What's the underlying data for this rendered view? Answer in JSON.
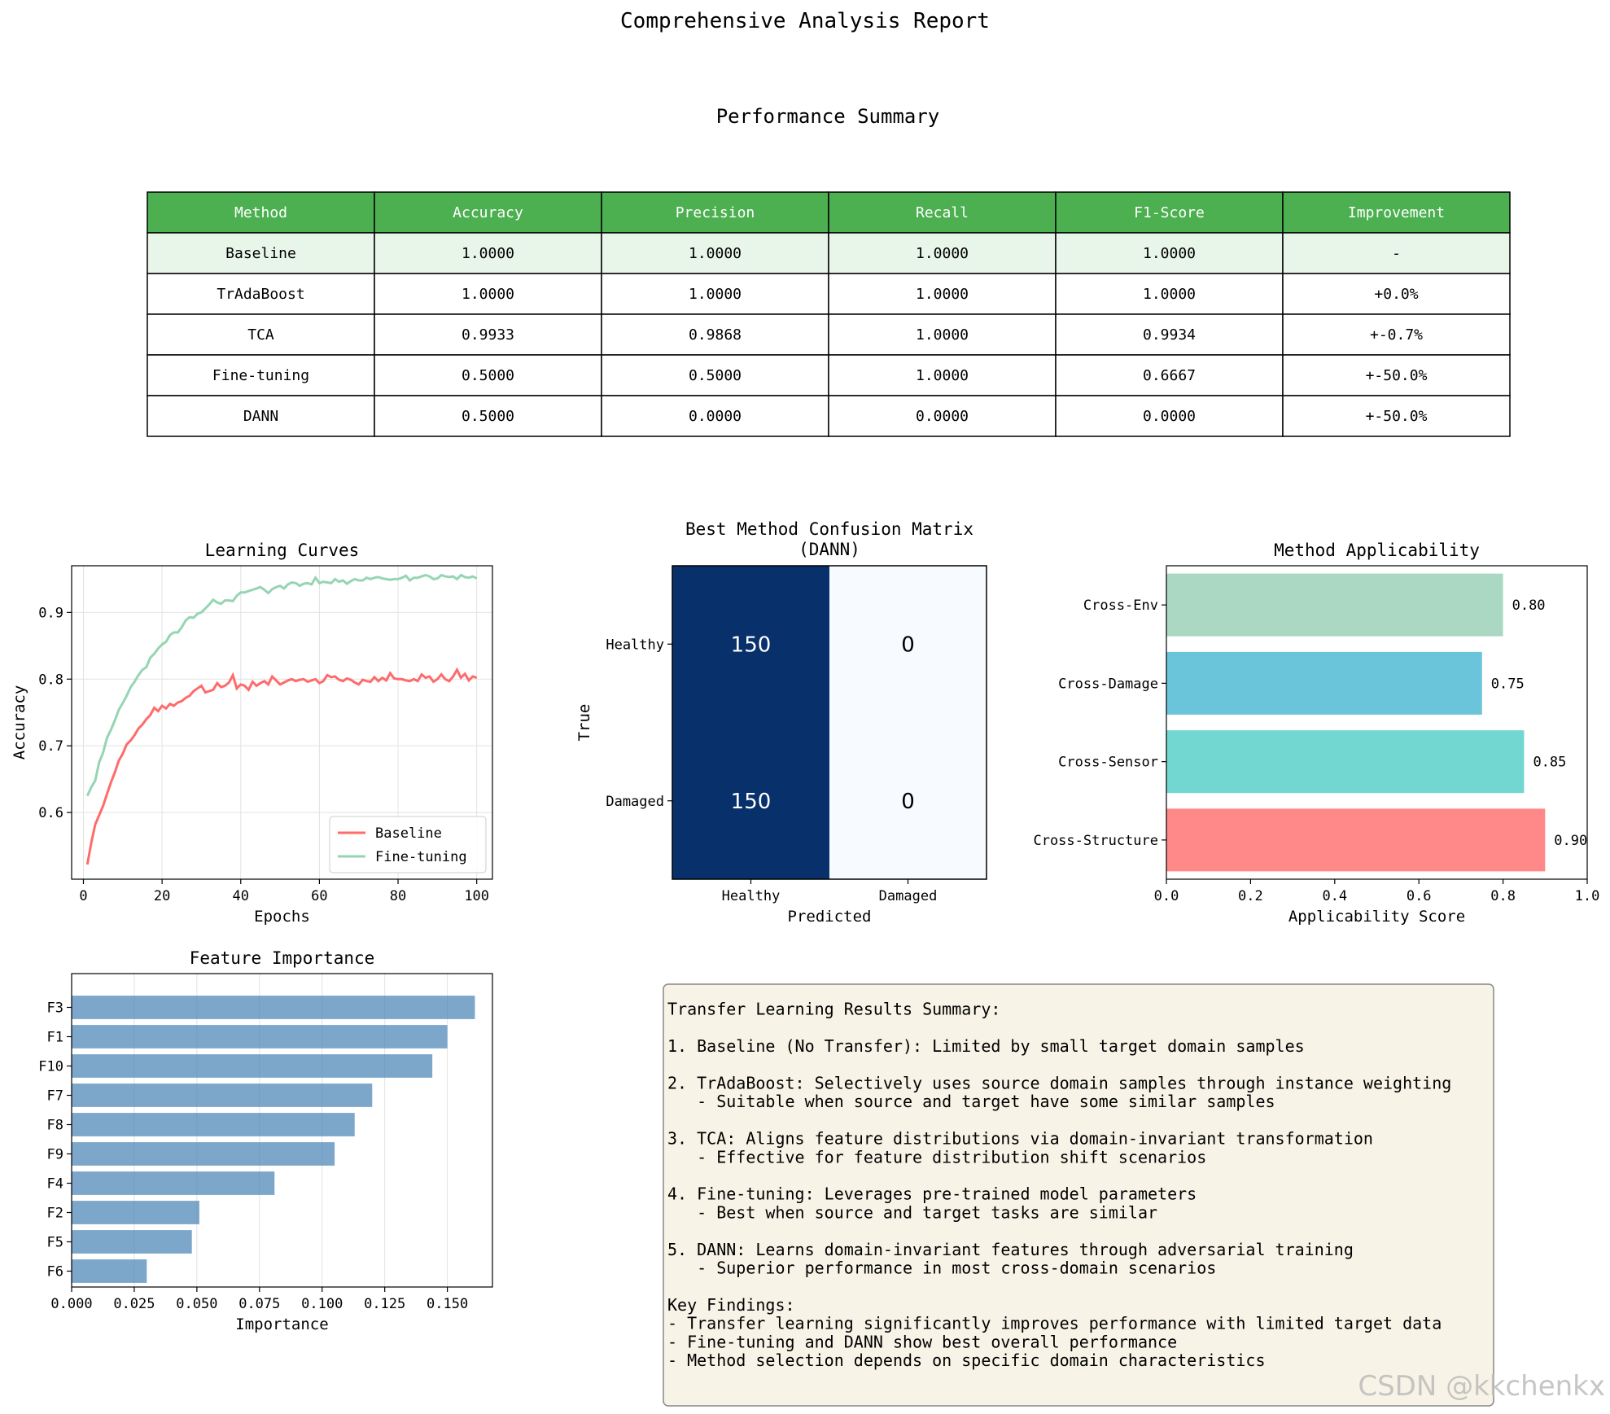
{
  "title": "Comprehensive Analysis Report",
  "table": {
    "title": "Performance Summary",
    "header_color": "#4caf50",
    "highlight_color": "#e8f5e9",
    "columns": [
      "Method",
      "Accuracy",
      "Precision",
      "Recall",
      "F1-Score",
      "Improvement"
    ],
    "rows": [
      [
        "Baseline",
        "1.0000",
        "1.0000",
        "1.0000",
        "1.0000",
        "-"
      ],
      [
        "TrAdaBoost",
        "1.0000",
        "1.0000",
        "1.0000",
        "1.0000",
        "+0.0%"
      ],
      [
        "TCA",
        "0.9933",
        "0.9868",
        "1.0000",
        "0.9934",
        "+-0.7%"
      ],
      [
        "Fine-tuning",
        "0.5000",
        "0.5000",
        "1.0000",
        "0.6667",
        "+-50.0%"
      ],
      [
        "DANN",
        "0.5000",
        "0.0000",
        "0.0000",
        "0.0000",
        "+-50.0%"
      ]
    ]
  },
  "chart_data": [
    {
      "type": "line",
      "title": "Learning Curves",
      "xlabel": "Epochs",
      "ylabel": "Accuracy",
      "xlim": [
        -3,
        104
      ],
      "ylim": [
        0.5,
        0.97
      ],
      "xticks": [
        0,
        20,
        40,
        60,
        80,
        100
      ],
      "yticks": [
        0.6,
        0.7,
        0.8,
        0.9
      ],
      "grid": true,
      "legend_position": "lower-right",
      "series": [
        {
          "name": "Baseline",
          "color": "#ff6b6b",
          "x": [
            1,
            2,
            3,
            4,
            5,
            6,
            7,
            8,
            9,
            10,
            11,
            12,
            13,
            14,
            15,
            16,
            17,
            18,
            19,
            20,
            21,
            22,
            23,
            24,
            25,
            26,
            27,
            28,
            29,
            30,
            31,
            32,
            33,
            34,
            35,
            36,
            37,
            38,
            39,
            40,
            41,
            42,
            43,
            44,
            45,
            46,
            47,
            48,
            49,
            50,
            51,
            52,
            53,
            54,
            55,
            56,
            57,
            58,
            59,
            60,
            61,
            62,
            63,
            64,
            65,
            66,
            67,
            68,
            69,
            70,
            71,
            72,
            73,
            74,
            75,
            76,
            77,
            78,
            79,
            80,
            81,
            82,
            83,
            84,
            85,
            86,
            87,
            88,
            89,
            90,
            91,
            92,
            93,
            94,
            95,
            96,
            97,
            98,
            99,
            100
          ],
          "values": [
            0.522,
            0.555,
            0.582,
            0.596,
            0.61,
            0.628,
            0.645,
            0.66,
            0.678,
            0.688,
            0.702,
            0.708,
            0.716,
            0.726,
            0.732,
            0.74,
            0.746,
            0.757,
            0.752,
            0.76,
            0.756,
            0.763,
            0.76,
            0.765,
            0.767,
            0.772,
            0.775,
            0.782,
            0.786,
            0.79,
            0.78,
            0.782,
            0.784,
            0.794,
            0.788,
            0.79,
            0.795,
            0.806,
            0.786,
            0.792,
            0.79,
            0.784,
            0.796,
            0.79,
            0.794,
            0.797,
            0.792,
            0.804,
            0.798,
            0.792,
            0.795,
            0.798,
            0.8,
            0.797,
            0.799,
            0.8,
            0.796,
            0.798,
            0.8,
            0.794,
            0.797,
            0.806,
            0.803,
            0.804,
            0.799,
            0.797,
            0.801,
            0.799,
            0.795,
            0.792,
            0.799,
            0.797,
            0.796,
            0.803,
            0.797,
            0.802,
            0.798,
            0.809,
            0.801,
            0.8,
            0.8,
            0.798,
            0.797,
            0.8,
            0.797,
            0.807,
            0.802,
            0.804,
            0.796,
            0.8,
            0.807,
            0.8,
            0.797,
            0.804,
            0.814,
            0.802,
            0.808,
            0.798,
            0.804,
            0.802
          ]
        },
        {
          "name": "Fine-tuning",
          "color": "#95d5b2",
          "x": [
            1,
            2,
            3,
            4,
            5,
            6,
            7,
            8,
            9,
            10,
            11,
            12,
            13,
            14,
            15,
            16,
            17,
            18,
            19,
            20,
            21,
            22,
            23,
            24,
            25,
            26,
            27,
            28,
            29,
            30,
            31,
            32,
            33,
            34,
            35,
            36,
            37,
            38,
            39,
            40,
            41,
            42,
            43,
            44,
            45,
            46,
            47,
            48,
            49,
            50,
            51,
            52,
            53,
            54,
            55,
            56,
            57,
            58,
            59,
            60,
            61,
            62,
            63,
            64,
            65,
            66,
            67,
            68,
            69,
            70,
            71,
            72,
            73,
            74,
            75,
            76,
            77,
            78,
            79,
            80,
            81,
            82,
            83,
            84,
            85,
            86,
            87,
            88,
            89,
            90,
            91,
            92,
            93,
            94,
            95,
            96,
            97,
            98,
            99,
            100
          ],
          "values": [
            0.625,
            0.638,
            0.648,
            0.675,
            0.69,
            0.712,
            0.724,
            0.738,
            0.754,
            0.764,
            0.775,
            0.788,
            0.796,
            0.806,
            0.814,
            0.818,
            0.832,
            0.838,
            0.846,
            0.852,
            0.856,
            0.866,
            0.87,
            0.87,
            0.878,
            0.888,
            0.893,
            0.892,
            0.898,
            0.9,
            0.906,
            0.912,
            0.919,
            0.915,
            0.913,
            0.918,
            0.918,
            0.917,
            0.925,
            0.93,
            0.93,
            0.932,
            0.934,
            0.936,
            0.938,
            0.934,
            0.929,
            0.935,
            0.938,
            0.94,
            0.936,
            0.942,
            0.945,
            0.944,
            0.94,
            0.943,
            0.944,
            0.942,
            0.952,
            0.944,
            0.946,
            0.945,
            0.944,
            0.95,
            0.946,
            0.948,
            0.943,
            0.947,
            0.95,
            0.948,
            0.948,
            0.952,
            0.95,
            0.952,
            0.953,
            0.951,
            0.95,
            0.949,
            0.95,
            0.95,
            0.952,
            0.955,
            0.948,
            0.952,
            0.952,
            0.954,
            0.956,
            0.954,
            0.95,
            0.951,
            0.956,
            0.954,
            0.953,
            0.954,
            0.95,
            0.956,
            0.953,
            0.952,
            0.954,
            0.951
          ]
        }
      ]
    },
    {
      "type": "heatmap",
      "title": "Best Method Confusion Matrix\n(DANN)",
      "xlabel": "Predicted",
      "ylabel": "True",
      "x_categories": [
        "Healthy",
        "Damaged"
      ],
      "y_categories": [
        "Healthy",
        "Damaged"
      ],
      "values": [
        [
          150,
          0
        ],
        [
          150,
          0
        ]
      ],
      "colormap": "Blues",
      "colors": [
        "#08306b",
        "#f7fbff"
      ]
    },
    {
      "type": "bar",
      "orientation": "horizontal",
      "title": "Method Applicability",
      "xlabel": "Applicability Score",
      "xlim": [
        0,
        1
      ],
      "xticks": [
        0.0,
        0.2,
        0.4,
        0.6,
        0.8,
        1.0
      ],
      "categories": [
        "Cross-Structure",
        "Cross-Sensor",
        "Cross-Damage",
        "Cross-Env"
      ],
      "values": [
        0.9,
        0.85,
        0.75,
        0.8
      ],
      "value_labels": [
        "0.90",
        "0.85",
        "0.75",
        "0.80"
      ],
      "colors": [
        "#ff6b6b",
        "#4ecdc4",
        "#45b7d1",
        "#96ceb4"
      ]
    },
    {
      "type": "bar",
      "orientation": "horizontal",
      "title": "Feature Importance",
      "xlabel": "Importance",
      "xlim": [
        0,
        0.168
      ],
      "xticks": [
        0.0,
        0.025,
        0.05,
        0.075,
        0.1,
        0.125,
        0.15
      ],
      "xtick_labels": [
        "0.000",
        "0.025",
        "0.050",
        "0.075",
        "0.100",
        "0.125",
        "0.150"
      ],
      "grid": true,
      "categories": [
        "F6",
        "F5",
        "F2",
        "F4",
        "F9",
        "F8",
        "F7",
        "F10",
        "F1",
        "F3"
      ],
      "values": [
        0.03,
        0.048,
        0.051,
        0.081,
        0.105,
        0.113,
        0.12,
        0.144,
        0.15,
        0.161
      ],
      "color": "#4682b4"
    }
  ],
  "summary_box": {
    "background": "#f5f0e1",
    "lines": [
      "",
      "Transfer Learning Results Summary:",
      "",
      "1. Baseline (No Transfer): Limited by small target domain samples",
      "",
      "2. TrAdaBoost: Selectively uses source domain samples through instance weighting",
      "   - Suitable when source and target have some similar samples",
      "",
      "3. TCA: Aligns feature distributions via domain-invariant transformation",
      "   - Effective for feature distribution shift scenarios",
      "",
      "4. Fine-tuning: Leverages pre-trained model parameters",
      "   - Best when source and target tasks are similar",
      "",
      "5. DANN: Learns domain-invariant features through adversarial training",
      "   - Superior performance in most cross-domain scenarios",
      "",
      "Key Findings:",
      "- Transfer learning significantly improves performance with limited target data",
      "- Fine-tuning and DANN show best overall performance",
      "- Method selection depends on specific domain characteristics"
    ]
  },
  "watermark": "CSDN @kkchenkx"
}
